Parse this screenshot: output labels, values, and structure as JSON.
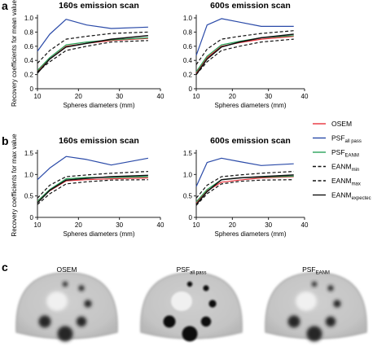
{
  "panel_labels": {
    "a": "a",
    "b": "b",
    "c": "c"
  },
  "colors": {
    "OSEM": "#e8313a",
    "PSF_all_pass": "#2a4aa8",
    "PSF_EANM": "#2aa35a",
    "EANM_min": "#111111",
    "EANM_max": "#111111",
    "EANM_expected": "#111111"
  },
  "chart_data": [
    {
      "type": "line",
      "panel": "a-left",
      "title": "160s emission scan",
      "xlabel": "Spheres diameters (mm)",
      "ylabel": "Recovery coefficients for mean value",
      "xlim": [
        10,
        40
      ],
      "ylim": [
        0,
        1.0
      ],
      "xticks": [
        10,
        20,
        30,
        40
      ],
      "yticks": [
        0,
        0.2,
        0.4,
        0.6,
        0.8,
        1.0
      ],
      "ytick_labels": [
        "0",
        "0.2",
        "0.4",
        "0.6",
        "0.8",
        "1.0"
      ],
      "x": [
        10,
        13,
        17,
        22,
        28,
        37
      ],
      "series": [
        {
          "name": "OSEM",
          "key": "OSEM",
          "dash": "solid",
          "values": [
            0.25,
            0.42,
            0.6,
            0.64,
            0.68,
            0.71
          ]
        },
        {
          "name": "PSF all pass",
          "key": "PSF_all_pass",
          "dash": "solid",
          "values": [
            0.53,
            0.77,
            0.98,
            0.9,
            0.85,
            0.87
          ]
        },
        {
          "name": "PSF EANM",
          "key": "PSF_EANM",
          "dash": "solid",
          "values": [
            0.26,
            0.44,
            0.62,
            0.66,
            0.69,
            0.72
          ]
        },
        {
          "name": "EANM min",
          "key": "EANM_min",
          "dash": "dash",
          "values": [
            0.24,
            0.38,
            0.54,
            0.6,
            0.66,
            0.68
          ]
        },
        {
          "name": "EANM max",
          "key": "EANM_max",
          "dash": "dash",
          "values": [
            0.36,
            0.54,
            0.7,
            0.74,
            0.78,
            0.8
          ]
        },
        {
          "name": "EANM expected",
          "key": "EANM_expected",
          "dash": "solid",
          "values": [
            0.22,
            0.42,
            0.59,
            0.64,
            0.7,
            0.75
          ]
        }
      ]
    },
    {
      "type": "line",
      "panel": "a-right",
      "title": "600s emission scan",
      "xlabel": "Spheres diameters (mm)",
      "ylabel": "",
      "xlim": [
        10,
        40
      ],
      "ylim": [
        0,
        1.0
      ],
      "xticks": [
        10,
        20,
        30,
        40
      ],
      "yticks": [
        0,
        0.2,
        0.4,
        0.6,
        0.8,
        1.0
      ],
      "ytick_labels": [
        "0",
        "0.2",
        "0.4",
        "0.6",
        "0.8",
        "1.0"
      ],
      "x": [
        10,
        13,
        17,
        22,
        28,
        37
      ],
      "series": [
        {
          "name": "OSEM",
          "key": "OSEM",
          "dash": "solid",
          "values": [
            0.22,
            0.44,
            0.6,
            0.65,
            0.7,
            0.74
          ]
        },
        {
          "name": "PSF all pass",
          "key": "PSF_all_pass",
          "dash": "solid",
          "values": [
            0.47,
            0.9,
            0.99,
            0.94,
            0.88,
            0.88
          ]
        },
        {
          "name": "PSF EANM",
          "key": "PSF_EANM",
          "dash": "solid",
          "values": [
            0.24,
            0.46,
            0.62,
            0.67,
            0.72,
            0.75
          ]
        },
        {
          "name": "EANM min",
          "key": "EANM_min",
          "dash": "dash",
          "values": [
            0.2,
            0.38,
            0.54,
            0.6,
            0.66,
            0.7
          ]
        },
        {
          "name": "EANM max",
          "key": "EANM_max",
          "dash": "dash",
          "values": [
            0.34,
            0.56,
            0.7,
            0.74,
            0.78,
            0.82
          ]
        },
        {
          "name": "EANM expected",
          "key": "EANM_expected",
          "dash": "solid",
          "values": [
            0.2,
            0.42,
            0.59,
            0.66,
            0.72,
            0.77
          ]
        }
      ]
    },
    {
      "type": "line",
      "panel": "b-left",
      "title": "160s emission scan",
      "xlabel": "Spheres diameters (mm)",
      "ylabel": "Recovery coefficients for max value",
      "xlim": [
        10,
        40
      ],
      "ylim": [
        0,
        1.5
      ],
      "xticks": [
        10,
        20,
        30,
        40
      ],
      "yticks": [
        0,
        0.5,
        1.0,
        1.5
      ],
      "ytick_labels": [
        "0",
        "0.5",
        "1.0",
        "1.5"
      ],
      "x": [
        10,
        13,
        17,
        22,
        28,
        37
      ],
      "series": [
        {
          "name": "OSEM",
          "key": "OSEM",
          "dash": "solid",
          "values": [
            0.38,
            0.62,
            0.85,
            0.88,
            0.9,
            0.92
          ]
        },
        {
          "name": "PSF all pass",
          "key": "PSF_all_pass",
          "dash": "solid",
          "values": [
            0.88,
            1.15,
            1.42,
            1.35,
            1.22,
            1.38
          ]
        },
        {
          "name": "PSF EANM",
          "key": "PSF_EANM",
          "dash": "solid",
          "values": [
            0.38,
            0.65,
            0.9,
            0.93,
            0.93,
            0.95
          ]
        },
        {
          "name": "EANM min",
          "key": "EANM_min",
          "dash": "dash",
          "values": [
            0.3,
            0.55,
            0.78,
            0.83,
            0.87,
            0.88
          ]
        },
        {
          "name": "EANM max",
          "key": "EANM_max",
          "dash": "dash",
          "values": [
            0.45,
            0.75,
            0.95,
            0.99,
            1.03,
            1.07
          ]
        },
        {
          "name": "EANM expected",
          "key": "EANM_expected",
          "dash": "solid",
          "values": [
            0.34,
            0.63,
            0.87,
            0.91,
            0.95,
            0.98
          ]
        }
      ]
    },
    {
      "type": "line",
      "panel": "b-right",
      "title": "600s emission scan",
      "xlabel": "Spheres diameters (mm)",
      "ylabel": "",
      "xlim": [
        10,
        40
      ],
      "ylim": [
        0,
        1.5
      ],
      "xticks": [
        10,
        20,
        30,
        40
      ],
      "yticks": [
        0,
        0.5,
        1.0,
        1.5
      ],
      "ytick_labels": [
        "0",
        "0.5",
        "1.0",
        "1.5"
      ],
      "x": [
        10,
        13,
        17,
        22,
        28,
        37
      ],
      "series": [
        {
          "name": "OSEM",
          "key": "OSEM",
          "dash": "solid",
          "values": [
            0.34,
            0.62,
            0.82,
            0.87,
            0.92,
            0.95
          ]
        },
        {
          "name": "PSF all pass",
          "key": "PSF_all_pass",
          "dash": "solid",
          "values": [
            0.72,
            1.28,
            1.38,
            1.3,
            1.21,
            1.25
          ]
        },
        {
          "name": "PSF EANM",
          "key": "PSF_EANM",
          "dash": "solid",
          "values": [
            0.36,
            0.65,
            0.88,
            0.92,
            0.94,
            0.96
          ]
        },
        {
          "name": "EANM min",
          "key": "EANM_min",
          "dash": "dash",
          "values": [
            0.28,
            0.55,
            0.78,
            0.84,
            0.87,
            0.88
          ]
        },
        {
          "name": "EANM max",
          "key": "EANM_max",
          "dash": "dash",
          "values": [
            0.45,
            0.75,
            0.95,
            0.99,
            1.03,
            1.07
          ]
        },
        {
          "name": "EANM expected",
          "key": "EANM_expected",
          "dash": "solid",
          "values": [
            0.3,
            0.6,
            0.88,
            0.92,
            0.95,
            0.99
          ]
        }
      ]
    }
  ],
  "legend": [
    {
      "key": "OSEM",
      "dash": "solid",
      "main": "OSEM",
      "sub": ""
    },
    {
      "key": "PSF_all_pass",
      "dash": "solid",
      "main": "PSF",
      "sub": "all pass"
    },
    {
      "key": "PSF_EANM",
      "dash": "solid",
      "main": "PSF",
      "sub": "EANM"
    },
    {
      "key": "EANM_min",
      "dash": "dash",
      "main": "EANM",
      "sub": "min"
    },
    {
      "key": "EANM_max",
      "dash": "dash",
      "main": "EANM",
      "sub": "max"
    },
    {
      "key": "EANM_expected",
      "dash": "solid",
      "main": "EANM",
      "sub": "expectec"
    }
  ],
  "images": [
    {
      "main": "OSEM",
      "sub": "",
      "sharp": false
    },
    {
      "main": "PSF",
      "sub": "all pass",
      "sharp": true
    },
    {
      "main": "PSF",
      "sub": "EANM",
      "sharp": false
    }
  ]
}
